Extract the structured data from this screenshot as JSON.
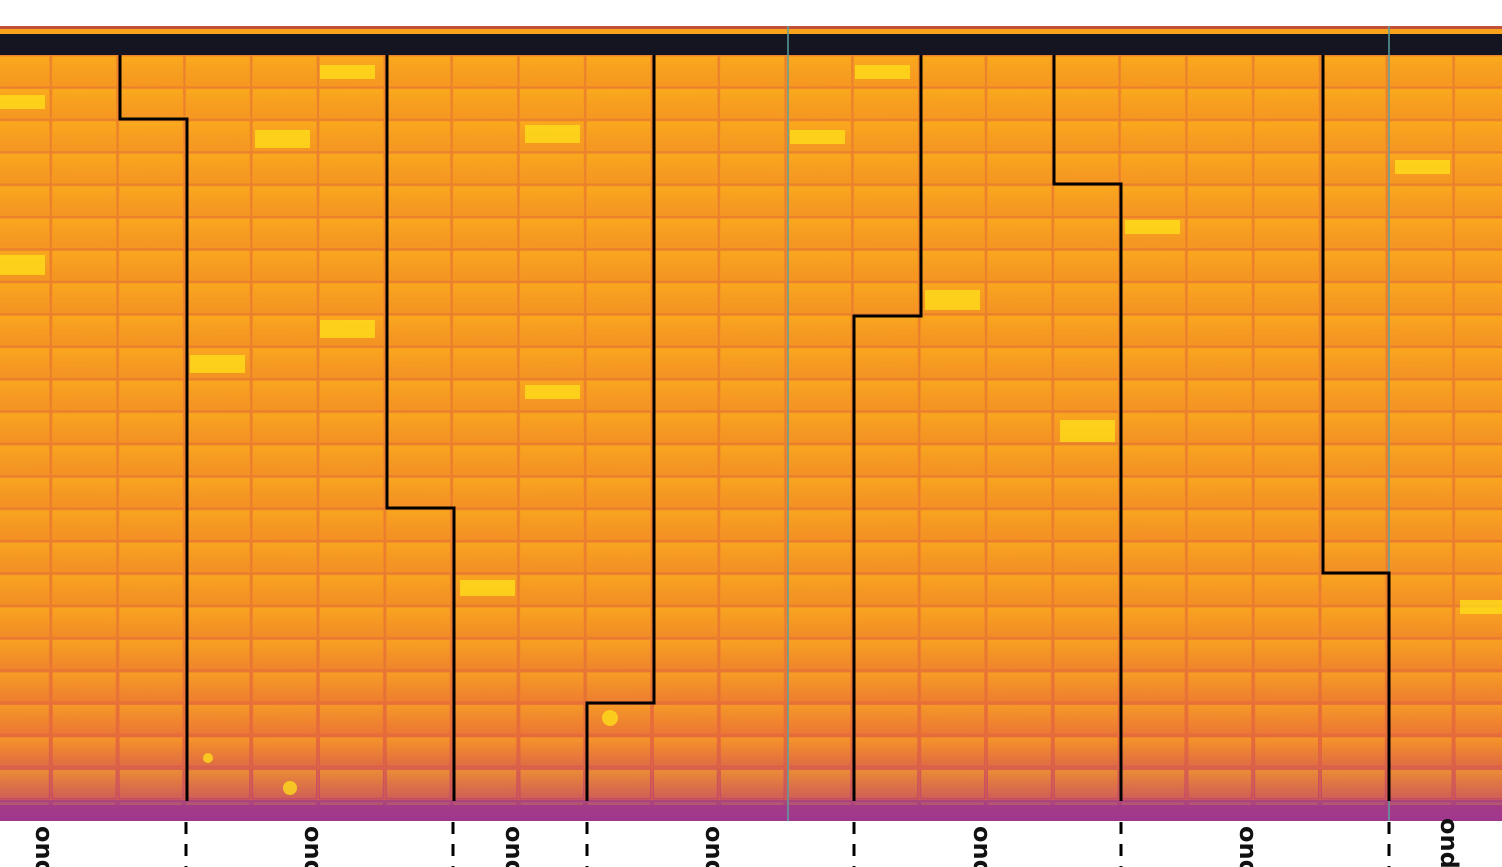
{
  "labels": [
    "ond",
    "ond",
    "ond",
    "ond",
    "ond",
    "ond",
    "ond"
  ]
}
